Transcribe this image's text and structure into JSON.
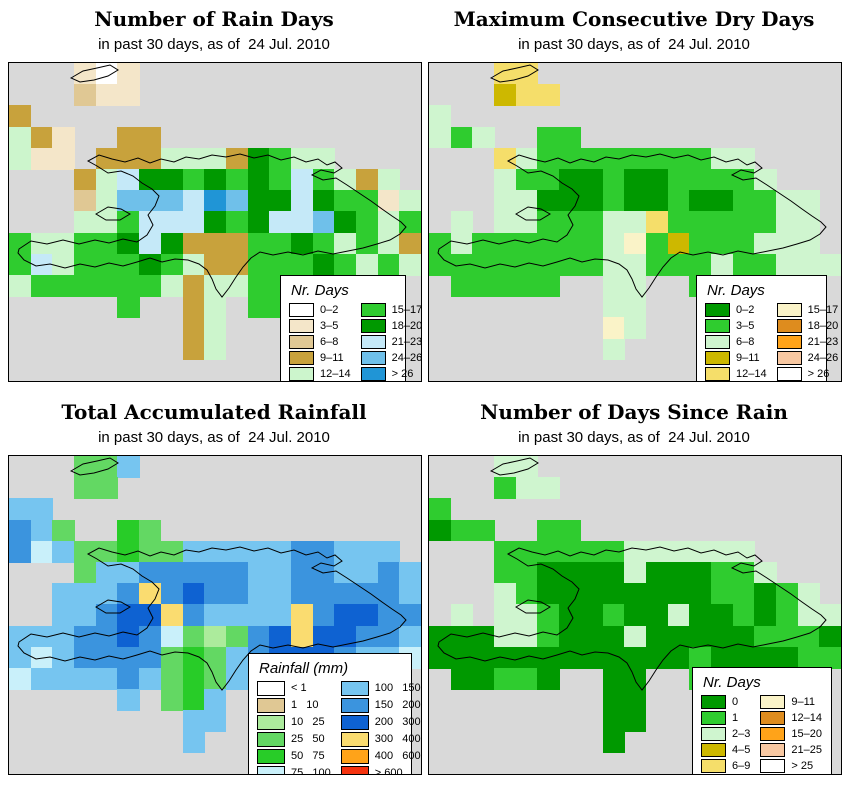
{
  "panels": [
    {
      "id": "number-of-rain-days",
      "title": "Number of Rain Days",
      "subtitle": "in past 30 days, as of  24 Jul. 2010",
      "legend": {
        "title": "Nr. Days",
        "columns": [
          [
            {
              "label": "0–2",
              "color": "#FFFFFF"
            },
            {
              "label": "3–5",
              "color": "#F4E6C9"
            },
            {
              "label": "6–8",
              "color": "#E0C894"
            },
            {
              "label": "9–11",
              "color": "#C8A23C"
            },
            {
              "label": "12–14",
              "color": "#CCF5CC"
            }
          ],
          [
            {
              "label": "15–17",
              "color": "#2FCC2F"
            },
            {
              "label": "18–20",
              "color": "#009900"
            },
            {
              "label": "21–23",
              "color": "#C5E9F8"
            },
            {
              "label": "24–26",
              "color": "#6FC0EA"
            },
            {
              "label": "> 26",
              "color": "#2095D6"
            }
          ]
        ]
      },
      "palette": {
        "W": "#FFFFFF",
        "A": "#F4E6C9",
        "B": "#E0C894",
        "C": "#C8A23C",
        "M": "#CCF5CC",
        "G": "#2FCC2F",
        "H": "#009900",
        "L": "#C5E9F8",
        "N": "#6FC0EA",
        "D": "#2095D6"
      },
      "grid": [
        "...AWA.............",
        "...BAA.............",
        "C..................",
        "MCA..CC............",
        "MAA.CCCMMMCHGMM....",
        "...CMLHHGHGHGLGMCM.",
        "...BMNNNLDNHHLHGGAM",
        "...MMGLLLHGHLLNHGMG",
        "GMMGGHLHCCCGGHGMGMC",
        "GLMGGGHGMCCGGGHGMGM",
        "MGGGGGGMCMMGGGM....",
        ".....G..CM.GG......",
        "........CM.........",
        "........CM.........",
        "..................."
      ]
    },
    {
      "id": "maximum-consecutive-dry-days",
      "title": "Maximum Consecutive Dry Days",
      "subtitle": "in past 30 days, as of  24 Jul. 2010",
      "legend": {
        "title": "Nr. Days",
        "columns": [
          [
            {
              "label": "0–2",
              "color": "#009900"
            },
            {
              "label": "3–5",
              "color": "#2FCC2F"
            },
            {
              "label": "6–8",
              "color": "#CFF5CF"
            },
            {
              "label": "9–11",
              "color": "#CDB800"
            },
            {
              "label": "12–14",
              "color": "#F5DE6A"
            }
          ],
          [
            {
              "label": "15–17",
              "color": "#FAF3C8"
            },
            {
              "label": "18–20",
              "color": "#DE8C1E"
            },
            {
              "label": "21–23",
              "color": "#FFA319"
            },
            {
              "label": "24–26",
              "color": "#F8C8A2"
            },
            {
              "label": "> 26",
              "color": "#FFFFFF"
            }
          ]
        ]
      },
      "palette": {
        "H": "#009900",
        "G": "#2FCC2F",
        "M": "#CFF5CF",
        "O": "#CDB800",
        "Y": "#F5DE6A",
        "P": "#FAF3C8"
      },
      "grid": [
        "...YY..............",
        "...OYY.............",
        "M..................",
        "MGM..GG............",
        "...YMGGGGGGGGMM....",
        "...MGGHHGHHGGGGM...",
        "...MMHHHGHHGHHGGMM.",
        ".M.MMGGGMMYGGGGGMM.",
        "GMGGGGGGMPGOGGGMMM.",
        "GGGGGGGGMMGGGMGGMMM",
        ".GGGGG..MM..GM.....",
        "........MM.........",
        "........PM.........",
        "........M..........",
        "..................."
      ]
    },
    {
      "id": "total-accumulated-rainfall",
      "title": "Total Accumulated Rainfall",
      "subtitle": "in past 30 days, as of  24 Jul. 2010",
      "legend": {
        "title": "Rainfall (mm)",
        "columns": [
          [
            {
              "label": "< 1",
              "color": "#FFFFFF"
            },
            {
              "label": "1   10",
              "color": "#E0C894"
            },
            {
              "label": "10   25",
              "color": "#ACEB9C"
            },
            {
              "label": "25   50",
              "color": "#63D863"
            },
            {
              "label": "50   75",
              "color": "#28CC28"
            },
            {
              "label": "75   100",
              "color": "#C9F0FA"
            }
          ],
          [
            {
              "label": "100   150",
              "color": "#76C5F0"
            },
            {
              "label": "150   200",
              "color": "#3B94DE"
            },
            {
              "label": "200   300",
              "color": "#0E62D2"
            },
            {
              "label": "300   400",
              "color": "#FADC70"
            },
            {
              "label": "400   600",
              "color": "#FFA319"
            },
            {
              "label": "> 600",
              "color": "#F5330F"
            }
          ]
        ]
      },
      "palette": {
        "T": "#E0C894",
        "K": "#ACEB9C",
        "J": "#63D863",
        "G": "#28CC28",
        "Q": "#C9F0FA",
        "L": "#76C5F0",
        "M": "#3B94DE",
        "D": "#0E62D2",
        "Y": "#FADC70"
      },
      "grid": [
        "...JJL.............",
        "...JJ..............",
        "LL.................",
        "MLJ..GJ............",
        "MQLJJGJJLLLLLMMLLL.",
        "...JLLMMMMMLLMMLLML",
        "..LLLMYMDMMLLMMMMML",
        "..LLMDDYMLLLLYMDDMM",
        "LLLMMDMQJKJMDYDDMML",
        "LQLMMMMJGJLMDDDMLLQ",
        "QLLLLMLJGJLLMML....",
        ".....L.JGL.........",
        "........LL.........",
        "........L..........",
        "..................."
      ]
    },
    {
      "id": "number-of-days-since-rain",
      "title": "Number of Days Since Rain",
      "subtitle": "in past 30 days, as of  24 Jul. 2010",
      "legend": {
        "title": "Nr. Days",
        "columns": [
          [
            {
              "label": "0",
              "color": "#009900"
            },
            {
              "label": "1",
              "color": "#2FCC2F"
            },
            {
              "label": "2–3",
              "color": "#CFF5CF"
            },
            {
              "label": "4–5",
              "color": "#CDB800"
            },
            {
              "label": "6–9",
              "color": "#F5DE6A"
            }
          ],
          [
            {
              "label": "9–11",
              "color": "#FAF3C8"
            },
            {
              "label": "12–14",
              "color": "#DE8C1E"
            },
            {
              "label": "15–20",
              "color": "#FFA319"
            },
            {
              "label": "21–25",
              "color": "#F8C8A2"
            },
            {
              "label": "> 25",
              "color": "#FFFFFF"
            }
          ]
        ]
      },
      "palette": {
        "H": "#009900",
        "G": "#2FCC2F",
        "M": "#CFF5CF"
      },
      "grid": [
        "...MM..............",
        "...GMM.............",
        "G..................",
        "HGG..GG............",
        "...GGGGGGMMMMMM....",
        "...GGHHHHMHHHGGM...",
        "...MGHHHHHHHHGGHGM.",
        ".M.MMGHHGHHMHHGHGMM",
        "HHHMMGHHHMHHHHHGGGH",
        "HHHHHHHHHHHHGHHHHGG",
        ".HHGGH..HH..GG.....",
        "........HH.........",
        "........HH.........",
        "........H..........",
        "..................."
      ]
    }
  ]
}
